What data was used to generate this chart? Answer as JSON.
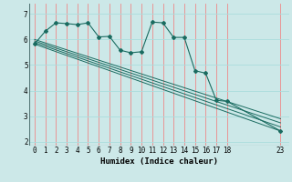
{
  "background_color": "#cce8e8",
  "grid_color_v": "#ee8888",
  "grid_color_h": "#aadddd",
  "line_color": "#1a6b60",
  "xlabel": "Humidex (Indice chaleur)",
  "xlabel_fontsize": 6.5,
  "tick_fontsize": 5.5,
  "xlim": [
    -0.5,
    23.8
  ],
  "ylim": [
    1.85,
    7.4
  ],
  "yticks": [
    2,
    3,
    4,
    5,
    6,
    7
  ],
  "xticks": [
    0,
    1,
    2,
    3,
    4,
    5,
    6,
    7,
    8,
    9,
    10,
    11,
    12,
    13,
    14,
    15,
    16,
    17,
    18,
    23
  ],
  "line1_x": [
    0,
    1,
    2,
    3,
    4,
    5,
    6,
    7,
    8,
    9,
    10,
    11,
    12,
    13,
    14,
    15,
    16,
    17,
    18,
    23
  ],
  "line1_y": [
    5.82,
    6.32,
    6.65,
    6.62,
    6.58,
    6.65,
    6.1,
    6.12,
    5.58,
    5.48,
    5.52,
    6.68,
    6.65,
    6.08,
    6.08,
    4.78,
    4.68,
    3.62,
    3.58,
    2.42
  ],
  "line3_x": [
    0,
    23
  ],
  "line3_y": [
    5.82,
    2.42
  ],
  "line4_x": [
    0,
    23
  ],
  "line4_y": [
    5.88,
    2.58
  ],
  "line5_x": [
    0,
    23
  ],
  "line5_y": [
    5.94,
    2.74
  ],
  "line6_x": [
    0,
    23
  ],
  "line6_y": [
    6.0,
    2.9
  ]
}
